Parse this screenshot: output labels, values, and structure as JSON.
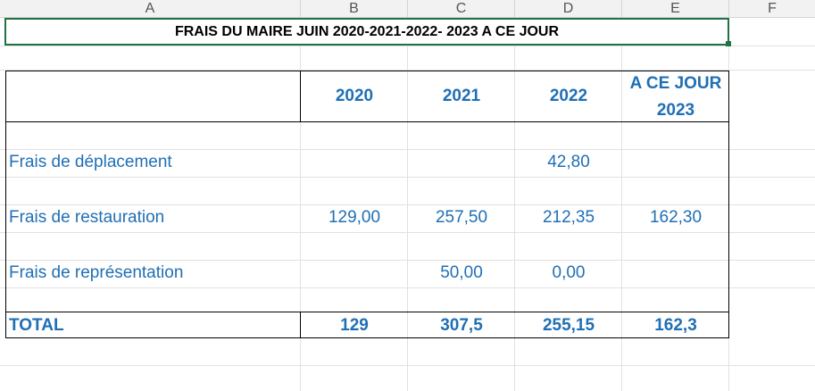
{
  "columns": [
    "A",
    "B",
    "C",
    "D",
    "E",
    "F"
  ],
  "title": "FRAIS DU MAIRE  JUIN 2020-2021-2022- 2023 A CE JOUR",
  "headers": [
    "2020",
    "2021",
    "2022",
    "A CE JOUR",
    "2023"
  ],
  "rows": [
    {
      "label": "Frais de déplacement",
      "values": [
        "",
        "",
        "42,80",
        ""
      ]
    },
    {
      "label": "Frais de restauration",
      "values": [
        "129,00",
        "257,50",
        "212,35",
        "162,30"
      ]
    },
    {
      "label": "Frais de représentation",
      "values": [
        "",
        "50,00",
        "0,00",
        ""
      ]
    }
  ],
  "total": {
    "label": "TOTAL",
    "values": [
      "129",
      "307,5",
      "255,15",
      "162,3"
    ]
  },
  "colors": {
    "text_blue": "#1f6fb5",
    "selection_green": "#1f7244",
    "gridline": "#e1e1e1"
  }
}
